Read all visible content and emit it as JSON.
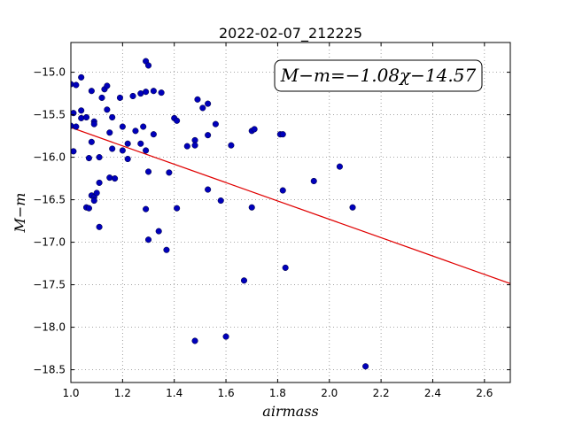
{
  "chart_data": {
    "type": "scatter",
    "title": "2022-02-07_212225",
    "xlabel": "airmass",
    "ylabel": "M−m",
    "xlim": [
      1.0,
      2.7
    ],
    "ylim": [
      -18.65,
      -14.65
    ],
    "x_ticks": [
      1.0,
      1.2,
      1.4,
      1.6,
      1.8,
      2.0,
      2.2,
      2.4,
      2.6
    ],
    "x_tick_labels": [
      "1.0",
      "1.2",
      "1.4",
      "1.6",
      "1.8",
      "2.0",
      "2.2",
      "2.4",
      "2.6"
    ],
    "y_ticks": [
      -15.0,
      -15.5,
      -16.0,
      -16.5,
      -17.0,
      -17.5,
      -18.0,
      -18.5
    ],
    "y_tick_labels": [
      "−15.0",
      "−15.5",
      "−16.0",
      "−16.5",
      "−17.0",
      "−17.5",
      "−18.0",
      "−18.5"
    ],
    "grid": true,
    "annotation": "M−m=−1.08χ−14.57",
    "fit_line": {
      "slope": -1.08,
      "intercept": -14.57,
      "color": "#e00000"
    },
    "point_color": "#0000bb",
    "points": [
      [
        1.0,
        -15.14
      ],
      [
        1.02,
        -15.15
      ],
      [
        1.04,
        -15.06
      ],
      [
        1.01,
        -15.48
      ],
      [
        1.0,
        -15.63
      ],
      [
        1.02,
        -15.64
      ],
      [
        1.04,
        -15.45
      ],
      [
        1.04,
        -15.54
      ],
      [
        1.06,
        -15.53
      ],
      [
        1.08,
        -15.22
      ],
      [
        1.09,
        -15.58
      ],
      [
        1.09,
        -15.61
      ],
      [
        1.08,
        -15.82
      ],
      [
        1.07,
        -16.01
      ],
      [
        1.01,
        -15.93
      ],
      [
        1.06,
        -16.59
      ],
      [
        1.07,
        -16.6
      ],
      [
        1.08,
        -16.45
      ],
      [
        1.09,
        -16.47
      ],
      [
        1.09,
        -16.51
      ],
      [
        1.1,
        -16.42
      ],
      [
        1.11,
        -16.3
      ],
      [
        1.11,
        -16.82
      ],
      [
        1.11,
        -16.0
      ],
      [
        1.12,
        -15.3
      ],
      [
        1.13,
        -15.2
      ],
      [
        1.14,
        -15.16
      ],
      [
        1.14,
        -15.44
      ],
      [
        1.15,
        -15.71
      ],
      [
        1.16,
        -15.53
      ],
      [
        1.16,
        -15.9
      ],
      [
        1.15,
        -16.24
      ],
      [
        1.17,
        -16.25
      ],
      [
        1.19,
        -15.3
      ],
      [
        1.2,
        -15.64
      ],
      [
        1.2,
        -15.92
      ],
      [
        1.22,
        -15.84
      ],
      [
        1.22,
        -16.02
      ],
      [
        1.24,
        -15.28
      ],
      [
        1.25,
        -15.69
      ],
      [
        1.27,
        -15.25
      ],
      [
        1.27,
        -15.84
      ],
      [
        1.28,
        -15.64
      ],
      [
        1.29,
        -15.92
      ],
      [
        1.29,
        -15.23
      ],
      [
        1.29,
        -14.87
      ],
      [
        1.3,
        -14.92
      ],
      [
        1.3,
        -16.17
      ],
      [
        1.29,
        -16.61
      ],
      [
        1.3,
        -16.97
      ],
      [
        1.32,
        -15.22
      ],
      [
        1.32,
        -15.73
      ],
      [
        1.34,
        -16.87
      ],
      [
        1.35,
        -15.24
      ],
      [
        1.37,
        -17.09
      ],
      [
        1.38,
        -16.18
      ],
      [
        1.4,
        -15.54
      ],
      [
        1.41,
        -15.57
      ],
      [
        1.41,
        -16.6
      ],
      [
        1.45,
        -15.87
      ],
      [
        1.48,
        -15.8
      ],
      [
        1.48,
        -15.86
      ],
      [
        1.49,
        -15.32
      ],
      [
        1.51,
        -15.42
      ],
      [
        1.53,
        -15.37
      ],
      [
        1.53,
        -15.74
      ],
      [
        1.53,
        -16.38
      ],
      [
        1.56,
        -15.61
      ],
      [
        1.58,
        -16.51
      ],
      [
        1.62,
        -15.86
      ],
      [
        1.48,
        -18.16
      ],
      [
        1.6,
        -18.11
      ],
      [
        1.67,
        -17.45
      ],
      [
        1.7,
        -16.59
      ],
      [
        1.7,
        -15.69
      ],
      [
        1.71,
        -15.67
      ],
      [
        1.81,
        -15.73
      ],
      [
        1.82,
        -15.73
      ],
      [
        1.82,
        -16.39
      ],
      [
        1.83,
        -17.3
      ],
      [
        1.94,
        -16.28
      ],
      [
        2.04,
        -16.11
      ],
      [
        2.09,
        -16.59
      ],
      [
        2.14,
        -18.46
      ]
    ]
  }
}
